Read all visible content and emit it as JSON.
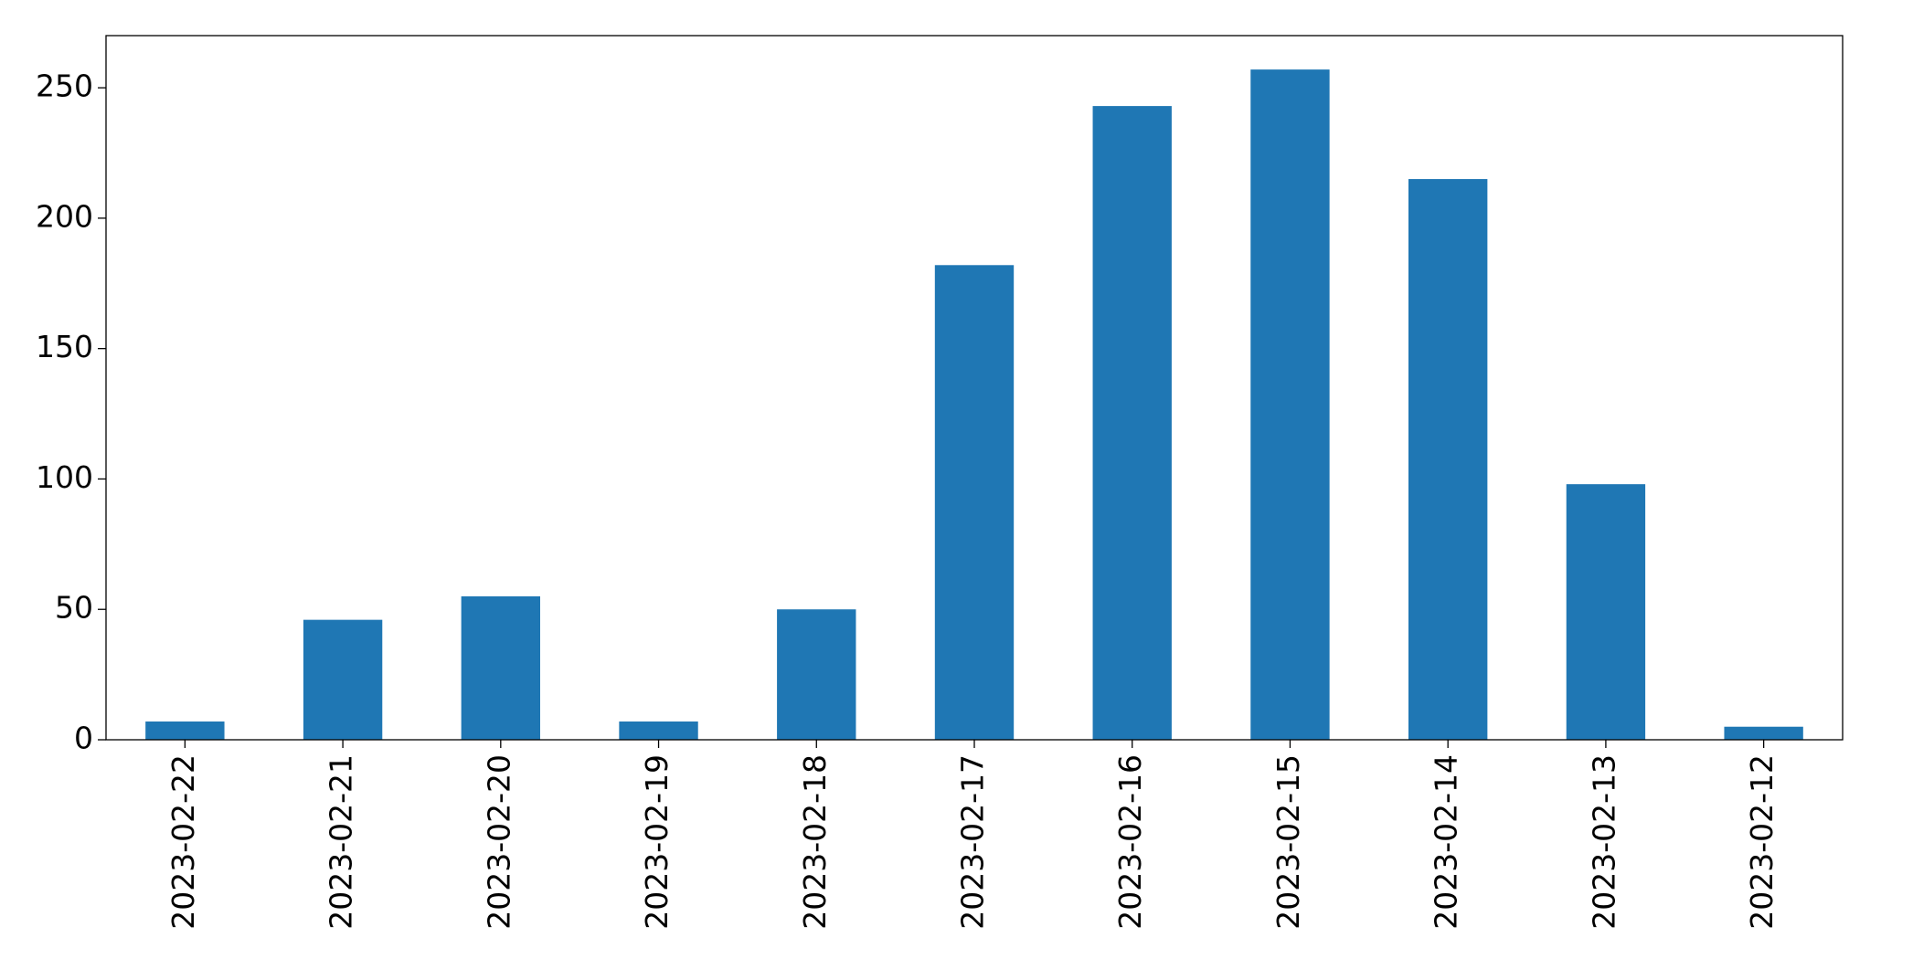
{
  "chart_data": {
    "type": "bar",
    "categories": [
      "2023-02-22",
      "2023-02-21",
      "2023-02-20",
      "2023-02-19",
      "2023-02-18",
      "2023-02-17",
      "2023-02-16",
      "2023-02-15",
      "2023-02-14",
      "2023-02-13",
      "2023-02-12"
    ],
    "values": [
      7,
      46,
      55,
      7,
      50,
      182,
      243,
      257,
      215,
      98,
      5
    ],
    "color": "#1f77b4",
    "ylim": [
      0,
      270
    ],
    "yticks": [
      0,
      50,
      100,
      150,
      200,
      250
    ],
    "grid": false
  }
}
